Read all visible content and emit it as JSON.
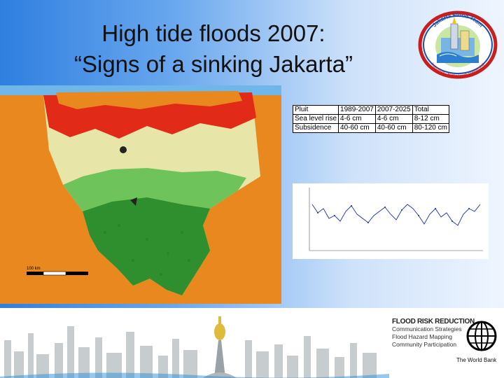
{
  "slide": {
    "title_line1": "High tide floods 2007:",
    "title_line2": "“Signs of a sinking Jakarta”"
  },
  "logo": {
    "top_text": "Jakarta Flood Team",
    "bottom_text": "Indonesia - Netherlands Partnership"
  },
  "map": {
    "scale_label": "100 km",
    "colors": [
      "#e8881e",
      "#e22a18",
      "#e7e6a8",
      "#4aa840",
      "#2f8f2f"
    ]
  },
  "table": {
    "rows": [
      [
        "Pluit",
        "1989-2007",
        "2007-2025",
        "Total"
      ],
      [
        "Sea level rise",
        "4-6 cm",
        "4-6 cm",
        "8-12 cm"
      ],
      [
        "Subsidence",
        "40-60 cm",
        "40-60 cm",
        "80-120 cm"
      ]
    ]
  },
  "footer": {
    "frr_title": "FLOOD RISK REDUCTION",
    "frr_items": [
      "Communication Strategies",
      "Flood Hazard Mapping",
      "Community Participation"
    ],
    "wb_label": "The World Bank"
  }
}
